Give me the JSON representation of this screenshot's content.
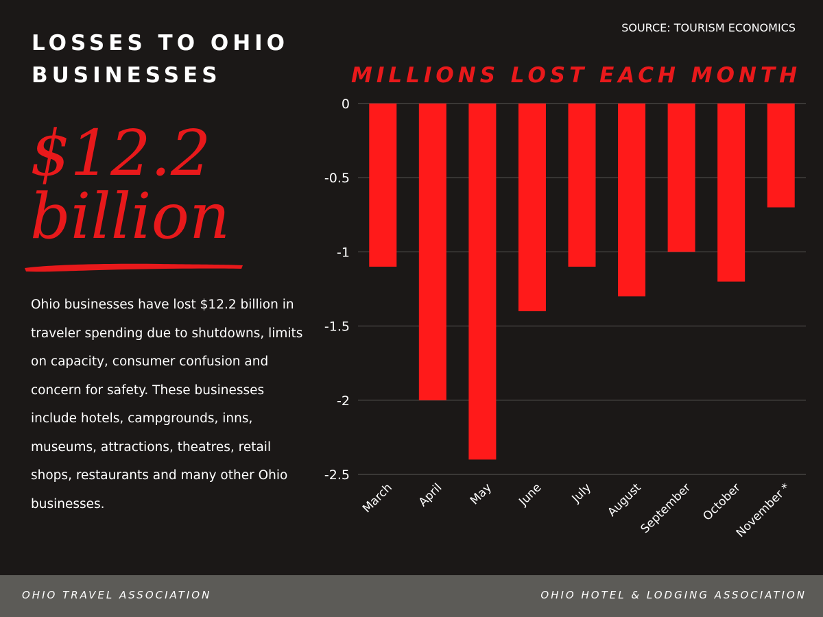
{
  "headline": "LOSSES TO OHIO BUSINESSES",
  "big_amount": {
    "line1": "$12.2",
    "line2": "billion"
  },
  "description": "Ohio businesses have lost $12.2 billion in traveler spending due to shutdowns, limits on capacity, consumer confusion and concern for safety. These businesses include hotels, campgrounds, inns, museums, attractions, theatres, retail shops, restaurants and many other Ohio businesses.",
  "source": "SOURCE: TOURISM ECONOMICS",
  "footer": {
    "left": "OHIO TRAVEL ASSOCIATION",
    "right": "OHIO HOTEL & LODGING ASSOCIATION"
  },
  "colors": {
    "background": "#1b1817",
    "accent": "#e8191b",
    "footer": "#5c5b57"
  },
  "chart_data": {
    "type": "bar",
    "title": "MILLIONS LOST EACH MONTH",
    "categories": [
      "March",
      "April",
      "May",
      "June",
      "July",
      "August",
      "September",
      "October",
      "November *"
    ],
    "values": [
      -1.1,
      -2.0,
      -2.4,
      -1.4,
      -1.1,
      -1.3,
      -1.0,
      -1.2,
      -0.7
    ],
    "yticks": [
      0,
      -0.5,
      -1,
      -1.5,
      -2,
      -2.5
    ],
    "ylim": [
      -2.5,
      0
    ],
    "grid": true,
    "legend": "none",
    "bar_color": "#ff1a1a"
  }
}
